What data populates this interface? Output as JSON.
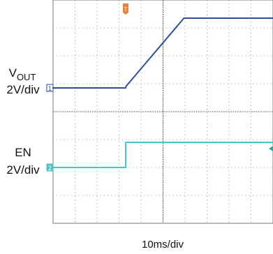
{
  "chart_data": {
    "type": "line",
    "title": "",
    "time_scale_label": "10ms/div",
    "grid": true,
    "x_divisions": 10,
    "x_range_divisions": [
      0,
      10
    ],
    "channels": [
      {
        "id": "1",
        "name_main": "V",
        "name_sub": "OUT",
        "scale_label": "2V/div",
        "marker": "1",
        "color": "#2a4f9f",
        "points": [
          [
            0,
            0
          ],
          [
            3.3,
            0
          ],
          [
            3.32,
            0.12
          ],
          [
            5.95,
            5.0
          ],
          [
            10,
            5.0
          ]
        ]
      },
      {
        "id": "2",
        "name_main": "EN",
        "name_sub": "",
        "scale_label": "2V/div",
        "marker": "2",
        "color": "#4fc1c8",
        "points": [
          [
            0,
            0
          ],
          [
            3.3,
            0
          ],
          [
            3.3,
            1.8
          ],
          [
            10,
            1.8
          ]
        ]
      }
    ],
    "trigger_marker": {
      "label": "T",
      "color": "#e8833a"
    },
    "level_marker": {
      "color": "#2aa8a3"
    }
  }
}
